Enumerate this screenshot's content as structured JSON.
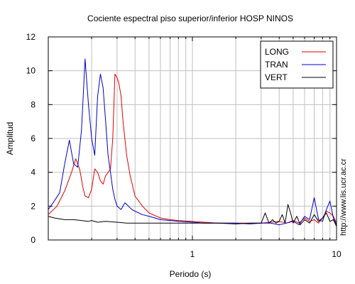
{
  "chart_data": {
    "type": "line",
    "title": "Cociente espectral piso superior/inferior  HOSP NINOS",
    "xlabel": "Periodo (s)",
    "ylabel": "Amplitud",
    "xscale": "log",
    "xlim": [
      0.1,
      10
    ],
    "ylim": [
      0,
      12
    ],
    "x_ticks": [
      1,
      10
    ],
    "x_tick_labels": [
      "1",
      "10"
    ],
    "y_ticks": [
      0,
      2,
      4,
      6,
      8,
      10,
      12
    ],
    "y_tick_labels": [
      "0",
      "2",
      "4",
      "6",
      "8",
      "10",
      "12"
    ],
    "grid": true,
    "legend_position": "top-right",
    "watermark": "http://www.lis.ucr.ac.cr",
    "series": [
      {
        "name": "LONG",
        "color": "#e00000",
        "x": [
          0.1,
          0.115,
          0.13,
          0.145,
          0.155,
          0.165,
          0.175,
          0.18,
          0.19,
          0.2,
          0.21,
          0.22,
          0.23,
          0.24,
          0.25,
          0.26,
          0.27,
          0.28,
          0.29,
          0.3,
          0.31,
          0.32,
          0.33,
          0.35,
          0.37,
          0.4,
          0.45,
          0.5,
          0.6,
          0.7,
          0.8,
          1.0,
          1.2,
          1.5,
          2.0,
          2.5,
          3.0,
          3.5,
          4.0,
          4.5,
          5.0,
          5.5,
          6.0,
          6.5,
          7.0,
          7.5,
          8.0,
          8.5,
          9.0,
          9.5,
          10.0
        ],
        "y": [
          1.5,
          2.0,
          2.9,
          4.0,
          4.8,
          4.2,
          3.0,
          2.6,
          2.5,
          3.0,
          4.2,
          4.0,
          3.5,
          3.3,
          3.8,
          4.0,
          4.2,
          6.0,
          9.8,
          9.6,
          9.2,
          8.5,
          7.0,
          5.0,
          3.8,
          2.6,
          2.0,
          1.6,
          1.3,
          1.2,
          1.15,
          1.1,
          1.05,
          1.0,
          1.0,
          1.0,
          1.0,
          1.05,
          1.1,
          1.0,
          1.15,
          1.0,
          1.3,
          1.1,
          1.2,
          1.0,
          1.3,
          1.7,
          1.6,
          1.4,
          1.0
        ]
      },
      {
        "name": "TRAN",
        "color": "#0000cc",
        "x": [
          0.1,
          0.11,
          0.12,
          0.13,
          0.14,
          0.15,
          0.16,
          0.17,
          0.18,
          0.19,
          0.2,
          0.21,
          0.22,
          0.23,
          0.24,
          0.25,
          0.26,
          0.27,
          0.28,
          0.29,
          0.3,
          0.32,
          0.34,
          0.36,
          0.38,
          0.4,
          0.45,
          0.5,
          0.6,
          0.7,
          0.8,
          1.0,
          1.2,
          1.5,
          2.0,
          2.5,
          3.0,
          3.5,
          4.0,
          4.5,
          5.0,
          5.5,
          6.0,
          6.5,
          7.0,
          7.5,
          8.0,
          8.5,
          9.0,
          9.5,
          10.0
        ],
        "y": [
          1.8,
          2.3,
          2.8,
          4.5,
          5.9,
          4.5,
          4.3,
          6.5,
          10.7,
          8.0,
          6.0,
          5.0,
          8.5,
          9.8,
          9.0,
          7.0,
          5.0,
          4.0,
          3.0,
          2.4,
          2.0,
          1.8,
          2.2,
          2.0,
          1.8,
          1.7,
          1.5,
          1.4,
          1.2,
          1.15,
          1.1,
          1.05,
          1.0,
          1.0,
          1.0,
          0.95,
          1.0,
          1.0,
          0.9,
          1.0,
          1.1,
          0.9,
          1.4,
          1.2,
          2.5,
          1.2,
          1.1,
          1.8,
          2.3,
          1.3,
          0.9
        ]
      },
      {
        "name": "VERT",
        "color": "#000000",
        "x": [
          0.1,
          0.11,
          0.12,
          0.13,
          0.15,
          0.17,
          0.19,
          0.2,
          0.22,
          0.25,
          0.3,
          0.35,
          0.4,
          0.5,
          0.6,
          0.8,
          1.0,
          1.5,
          2.0,
          2.5,
          3.0,
          3.2,
          3.4,
          3.6,
          3.8,
          4.0,
          4.2,
          4.4,
          4.6,
          4.8,
          5.0,
          5.3,
          5.6,
          6.0,
          6.5,
          7.0,
          7.5,
          8.0,
          8.5,
          9.0,
          9.5,
          10.0
        ],
        "y": [
          1.4,
          1.3,
          1.25,
          1.2,
          1.2,
          1.15,
          1.1,
          1.15,
          1.05,
          1.1,
          1.05,
          1.0,
          1.0,
          1.0,
          1.0,
          1.0,
          1.0,
          1.0,
          0.95,
          1.0,
          1.0,
          1.6,
          1.0,
          1.2,
          1.0,
          1.1,
          1.5,
          1.0,
          2.1,
          1.6,
          1.0,
          1.4,
          0.9,
          1.2,
          1.0,
          1.5,
          1.1,
          1.3,
          1.6,
          1.1,
          1.2,
          0.8
        ]
      }
    ]
  }
}
